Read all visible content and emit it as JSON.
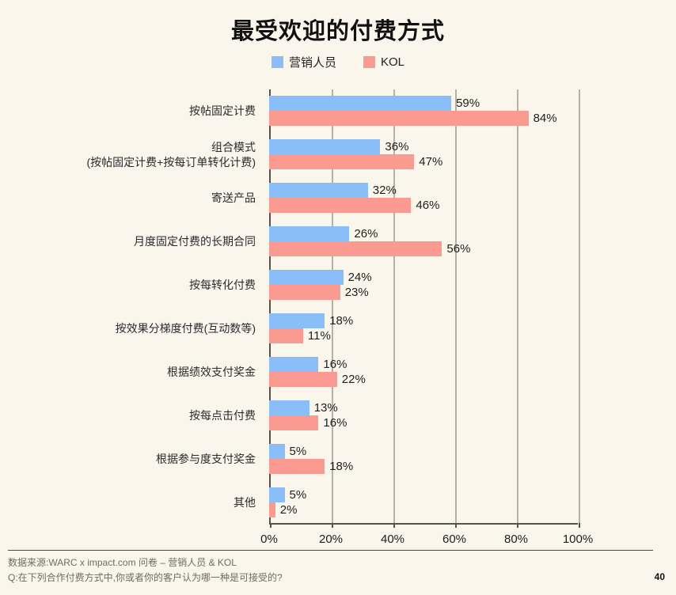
{
  "title": "最受欢迎的付费方式",
  "legend": [
    {
      "label": "营销人员",
      "color": "#89bef8"
    },
    {
      "label": "KOL",
      "color": "#fb9a90"
    }
  ],
  "chart_data": {
    "type": "bar",
    "orientation": "horizontal",
    "title": "最受欢迎的付费方式",
    "categories": [
      "按帖固定计费",
      "组合模式\n(按帖固定计费+按每订单转化计费)",
      "寄送产品",
      "月度固定付费的长期合同",
      "按每转化付费",
      "按效果分梯度付费(互动数等)",
      "根据绩效支付奖金",
      "按每点击付费",
      "根据参与度支付奖金",
      "其他"
    ],
    "series": [
      {
        "name": "营销人员",
        "color": "#89bef8",
        "values": [
          59,
          36,
          32,
          26,
          24,
          18,
          16,
          13,
          5,
          5
        ]
      },
      {
        "name": "KOL",
        "color": "#fb9a90",
        "values": [
          84,
          47,
          46,
          56,
          23,
          11,
          22,
          16,
          18,
          2
        ]
      }
    ],
    "value_suffix": "%",
    "x_ticks": [
      "0%",
      "20%",
      "40%",
      "60%",
      "80%",
      "100%"
    ],
    "xlim": [
      0,
      100
    ],
    "grid": true,
    "legend_position": "top"
  },
  "footer": {
    "source": "数据来源:WARC x impact.com 问卷 – 营销人员 & KOL",
    "question": "Q:在下列合作付费方式中,你或者你的客户认为哪一种是可接受的?",
    "page_number": "40"
  },
  "colors": {
    "background": "#faf6ec",
    "axis": "#56534b",
    "gridline": "#b5b1a6",
    "marketers_blue": "#89bef8",
    "kol_salmon": "#fb9a90"
  }
}
